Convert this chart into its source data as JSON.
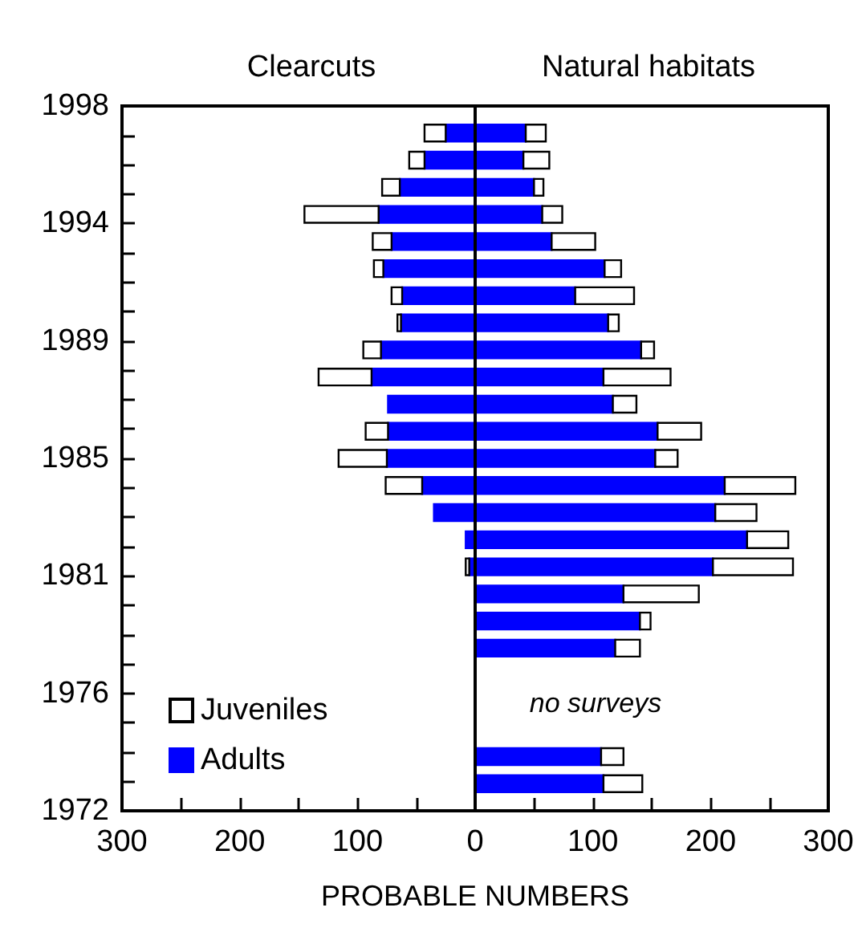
{
  "chart_data": {
    "type": "bar",
    "orientation": "horizontal",
    "stacked": true,
    "xlabel": "PROBABLE NUMBERS",
    "annotations": [
      "Clearcuts",
      "Natural habitats",
      "no surveys"
    ],
    "ref_lines": [
      {
        "axis": "x",
        "value": 0,
        "color": "#000000"
      }
    ],
    "x": [
      1973,
      1974,
      1978,
      1979,
      1980,
      1981,
      1982,
      1983,
      1984,
      1985,
      1986,
      1987,
      1988,
      1989,
      1990,
      1991,
      1992,
      1993,
      1994,
      1995,
      1996,
      1997
    ],
    "series": [
      {
        "name": "Adults",
        "color": "#0000ff",
        "values": [
          null,
          null,
          null,
          null,
          null,
          -5,
          -8,
          -35,
          -45,
          -75,
          -74,
          -74,
          -88,
          -80,
          -63,
          -62,
          -78,
          -71,
          -82,
          -64,
          -43,
          -25
        ]
      },
      {
        "name": "Juveniles",
        "color": "#ffffff",
        "values": [
          null,
          null,
          null,
          null,
          null,
          -3,
          null,
          null,
          -31,
          -41,
          -19,
          null,
          -45,
          -15,
          -3,
          -9,
          -8,
          -16,
          -63,
          -15,
          -13,
          -18
        ]
      },
      {
        "color": "#0000ff",
        "values": [
          109,
          107,
          119,
          140,
          126,
          202,
          231,
          204,
          212,
          153,
          155,
          117,
          109,
          141,
          113,
          85,
          110,
          65,
          57,
          50,
          41,
          43
        ]
      },
      {
        "color": "#ffffff",
        "values": [
          33,
          19,
          21,
          9,
          64,
          68,
          35,
          35,
          60,
          19,
          37,
          20,
          57,
          11,
          9,
          50,
          14,
          37,
          17,
          8,
          22,
          17
        ]
      }
    ],
    "xlim": [
      -300,
      300
    ],
    "xticks": [
      {
        "value": -300,
        "label": "300"
      },
      {
        "value": -250,
        "label": null
      },
      {
        "value": -200,
        "label": "200"
      },
      {
        "value": -150,
        "label": null
      },
      {
        "value": -100,
        "label": "100"
      },
      {
        "value": -50,
        "label": null
      },
      0,
      {
        "value": 50,
        "label": null
      },
      100,
      {
        "value": 150,
        "label": null
      },
      200,
      {
        "value": 250,
        "label": null
      },
      300
    ],
    "ylim": [
      1972,
      1998
    ],
    "yticks": [
      1972,
      {
        "value": 1973.083,
        "label": null
      },
      {
        "value": 1974.167,
        "label": null
      },
      {
        "value": 1975.25,
        "label": null
      },
      {
        "value": 1976.333,
        "label": "1976"
      },
      {
        "value": 1977.417,
        "label": null
      },
      {
        "value": 1978.5,
        "label": null
      },
      {
        "value": 1979.583,
        "label": null
      },
      {
        "value": 1980.667,
        "label": "1981"
      },
      {
        "value": 1981.75,
        "label": null
      },
      {
        "value": 1982.833,
        "label": null
      },
      {
        "value": 1983.917,
        "label": null
      },
      1985,
      {
        "value": 1986.083,
        "label": null
      },
      {
        "value": 1987.167,
        "label": null
      },
      {
        "value": 1988.25,
        "label": null
      },
      {
        "value": 1989.333,
        "label": "1989"
      },
      {
        "value": 1990.417,
        "label": null
      },
      {
        "value": 1991.5,
        "label": null
      },
      {
        "value": 1992.583,
        "label": null
      },
      {
        "value": 1993.667,
        "label": "1994"
      },
      {
        "value": 1994.75,
        "label": null
      },
      {
        "value": 1995.833,
        "label": null
      },
      {
        "value": 1996.917,
        "label": null
      },
      1998
    ],
    "legend": "bottom left",
    "grid": false
  }
}
